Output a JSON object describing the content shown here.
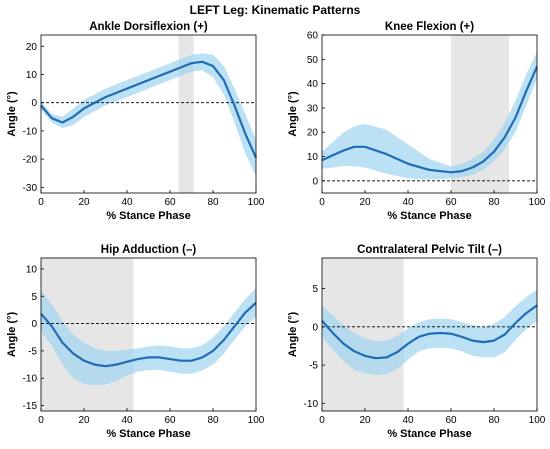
{
  "figure_title": "LEFT Leg: Kinematic Patterns",
  "colors": {
    "mean_line": "#1f6db5",
    "band": "#9fd3ef",
    "shade": "#e6e6e6",
    "zero_line": "#000000"
  },
  "chart_data": [
    {
      "type": "line",
      "title": "Ankle Dorsiflexion (+)",
      "xlabel": "% Stance Phase",
      "ylabel": "Angle (°)",
      "xlim": [
        0,
        100
      ],
      "ylim": [
        -32,
        24
      ],
      "xticks": [
        0,
        20,
        40,
        60,
        80,
        100
      ],
      "yticks": [
        -30,
        -20,
        -10,
        0,
        10,
        20
      ],
      "zero_line": true,
      "shaded_region": [
        64,
        71
      ],
      "series": [
        {
          "x": [
            0,
            5,
            10,
            15,
            20,
            30,
            40,
            50,
            60,
            65,
            70,
            75,
            80,
            85,
            90,
            95,
            100
          ],
          "mean": [
            -1,
            -5.5,
            -7,
            -5,
            -2,
            2,
            5,
            8,
            11,
            12.5,
            14,
            14.5,
            13,
            8,
            -1,
            -11,
            -19.5
          ],
          "upper": [
            0.5,
            -4,
            -5,
            -2,
            1,
            5,
            8,
            11,
            14,
            15.5,
            17,
            17.5,
            17,
            13,
            5,
            -4,
            -13
          ],
          "lower": [
            -2.5,
            -7,
            -9,
            -8,
            -5,
            -1,
            2,
            5,
            8,
            9.5,
            11,
            11.5,
            9,
            3,
            -7,
            -18,
            -26
          ]
        }
      ]
    },
    {
      "type": "line",
      "title": "Knee Flexion (+)",
      "xlabel": "% Stance Phase",
      "ylabel": "Angle (°)",
      "xlim": [
        0,
        100
      ],
      "ylim": [
        -5,
        60
      ],
      "xticks": [
        0,
        20,
        40,
        60,
        80,
        100
      ],
      "yticks": [
        0,
        10,
        20,
        30,
        40,
        50,
        60
      ],
      "zero_line": true,
      "shaded_region": [
        60,
        87
      ],
      "series": [
        {
          "x": [
            0,
            5,
            10,
            15,
            20,
            30,
            40,
            50,
            60,
            65,
            70,
            75,
            80,
            85,
            90,
            95,
            100
          ],
          "mean": [
            8.5,
            10.5,
            12.5,
            14,
            14,
            11,
            7,
            4.5,
            3.5,
            4,
            5.5,
            8,
            12,
            18,
            26,
            37,
            47
          ],
          "upper": [
            12,
            16,
            20,
            22.5,
            23.5,
            21,
            15,
            9,
            6,
            7,
            9,
            12,
            17,
            24,
            33,
            44,
            53
          ],
          "lower": [
            5,
            5.5,
            6,
            6,
            5.5,
            3,
            1,
            0.5,
            1,
            1.5,
            2.5,
            4.5,
            8,
            13,
            20,
            31,
            42
          ]
        }
      ]
    },
    {
      "type": "line",
      "title": "Hip Adduction (–)",
      "xlabel": "% Stance Phase",
      "ylabel": "Angle (°)",
      "xlim": [
        0,
        100
      ],
      "ylim": [
        -16,
        12
      ],
      "xticks": [
        0,
        20,
        40,
        60,
        80,
        100
      ],
      "yticks": [
        -15,
        -10,
        -5,
        0,
        5,
        10
      ],
      "zero_line": true,
      "shaded_region": [
        0,
        43
      ],
      "series": [
        {
          "x": [
            0,
            5,
            10,
            15,
            20,
            25,
            30,
            35,
            40,
            45,
            50,
            55,
            60,
            65,
            70,
            75,
            80,
            85,
            90,
            95,
            100
          ],
          "mean": [
            1.8,
            -0.5,
            -3.5,
            -5.5,
            -6.8,
            -7.5,
            -7.8,
            -7.5,
            -7,
            -6.5,
            -6.2,
            -6.2,
            -6.5,
            -6.8,
            -6.8,
            -6.2,
            -5,
            -3,
            -0.5,
            2,
            3.8
          ],
          "upper": [
            6,
            3.5,
            0.5,
            -2,
            -3.5,
            -4.5,
            -5,
            -5,
            -4.8,
            -4.5,
            -4.2,
            -4,
            -4.2,
            -4.5,
            -4.5,
            -4,
            -2.5,
            -0.5,
            2,
            4.5,
            6.5
          ],
          "lower": [
            -1.5,
            -4,
            -7.5,
            -10,
            -11,
            -11.3,
            -11.2,
            -10.5,
            -9.5,
            -8.8,
            -8.5,
            -8.5,
            -8.8,
            -9.2,
            -9.2,
            -8.6,
            -7.5,
            -5.5,
            -3,
            -0.5,
            1.2
          ]
        }
      ]
    },
    {
      "type": "line",
      "title": "Contralateral Pelvic Tilt (–)",
      "xlabel": "% Stance Phase",
      "ylabel": "Angle (°)",
      "xlim": [
        0,
        100
      ],
      "ylim": [
        -11,
        9
      ],
      "xticks": [
        0,
        20,
        40,
        60,
        80,
        100
      ],
      "yticks": [
        -10,
        -5,
        0,
        5
      ],
      "zero_line": true,
      "shaded_region": [
        0,
        38
      ],
      "series": [
        {
          "x": [
            0,
            5,
            10,
            15,
            20,
            25,
            30,
            35,
            40,
            45,
            50,
            55,
            60,
            65,
            70,
            75,
            80,
            85,
            90,
            95,
            100
          ],
          "mean": [
            0.8,
            -0.8,
            -2.2,
            -3.2,
            -3.8,
            -4.1,
            -4,
            -3.3,
            -2.2,
            -1.3,
            -0.9,
            -0.8,
            -0.9,
            -1.3,
            -1.8,
            -2,
            -1.8,
            -1,
            0.5,
            1.8,
            2.8
          ],
          "upper": [
            2.8,
            1.5,
            0.2,
            -0.8,
            -1.5,
            -1.9,
            -1.8,
            -1.2,
            -0.2,
            0.6,
            1,
            1.1,
            1,
            0.6,
            0.2,
            0,
            0.4,
            1.3,
            2.7,
            3.9,
            4.8
          ],
          "lower": [
            -1.3,
            -3,
            -4.5,
            -5.6,
            -6.1,
            -6.3,
            -6.2,
            -5.5,
            -4.3,
            -3.2,
            -2.8,
            -2.7,
            -2.8,
            -3.2,
            -3.8,
            -4,
            -4,
            -3.3,
            -1.7,
            -0.3,
            0.8
          ]
        }
      ]
    }
  ]
}
